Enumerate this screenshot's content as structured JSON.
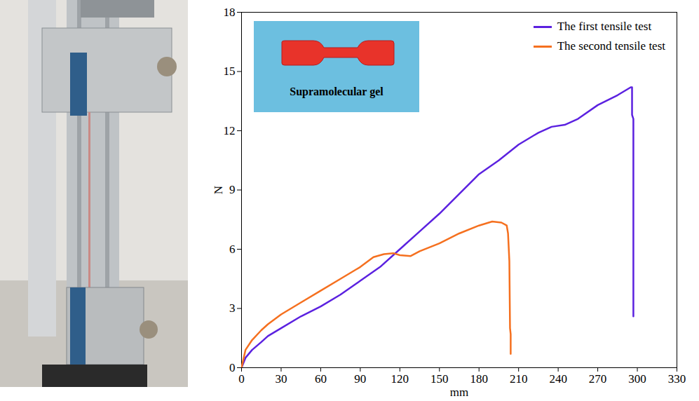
{
  "chart_data": {
    "type": "line",
    "x_label": "mm",
    "y_label": "N",
    "annotations": [
      "Supramolecular gel"
    ],
    "xlim": [
      0,
      330
    ],
    "xticks": [
      0,
      30,
      60,
      90,
      120,
      150,
      180,
      210,
      240,
      270,
      300,
      330
    ],
    "ylim": [
      0,
      18
    ],
    "yticks": [
      0,
      3,
      6,
      9,
      12,
      15,
      18
    ],
    "legend": "upper right",
    "series": [
      {
        "name": "The first tensile test",
        "color": "#5b21e0",
        "x": [
          0,
          3,
          8,
          15,
          20,
          30,
          45,
          60,
          75,
          90,
          105,
          120,
          135,
          150,
          165,
          180,
          195,
          210,
          225,
          235,
          245,
          255,
          270,
          285,
          295,
          296,
          296,
          297,
          297
        ],
        "values": [
          0,
          0.5,
          0.9,
          1.3,
          1.6,
          2.0,
          2.6,
          3.1,
          3.7,
          4.4,
          5.1,
          6.0,
          6.9,
          7.8,
          8.8,
          9.8,
          10.5,
          11.3,
          11.9,
          12.2,
          12.3,
          12.6,
          13.3,
          13.8,
          14.2,
          14.2,
          12.8,
          12.6,
          2.6
        ]
      },
      {
        "name": "The second tensile test",
        "color": "#f5701f",
        "x": [
          0,
          3,
          8,
          15,
          20,
          30,
          45,
          60,
          75,
          90,
          100,
          108,
          115,
          120,
          128,
          135,
          150,
          165,
          180,
          190,
          197,
          201,
          202,
          203,
          203.5,
          204,
          204
        ],
        "values": [
          0,
          0.9,
          1.4,
          1.9,
          2.2,
          2.7,
          3.3,
          3.9,
          4.5,
          5.1,
          5.6,
          5.75,
          5.8,
          5.7,
          5.65,
          5.9,
          6.3,
          6.8,
          7.2,
          7.4,
          7.35,
          7.2,
          6.8,
          5.4,
          2.0,
          1.7,
          0.7
        ]
      }
    ]
  }
}
